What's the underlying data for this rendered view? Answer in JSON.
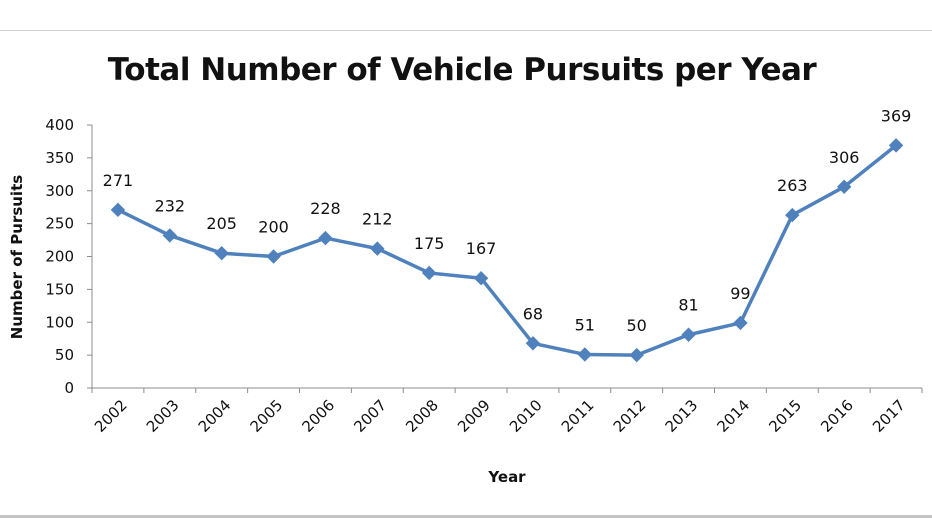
{
  "chart_data": {
    "type": "line",
    "title": "Total Number of Vehicle Pursuits per Year",
    "xlabel": "Year",
    "ylabel": "Number of Pursuits",
    "categories": [
      "2002",
      "2003",
      "2004",
      "2005",
      "2006",
      "2007",
      "2008",
      "2009",
      "2010",
      "2011",
      "2012",
      "2013",
      "2014",
      "2015",
      "2016",
      "2017"
    ],
    "series": [
      {
        "values": [
          271,
          232,
          205,
          200,
          228,
          212,
          175,
          167,
          68,
          51,
          50,
          81,
          99,
          263,
          306,
          369
        ]
      }
    ],
    "ylim": [
      0,
      400
    ],
    "yticks": [
      0,
      50,
      100,
      150,
      200,
      250,
      300,
      350,
      400
    ],
    "grid": false,
    "legend": "none",
    "marker": "diamond",
    "color": "#4f81bd",
    "data_labels": true
  }
}
